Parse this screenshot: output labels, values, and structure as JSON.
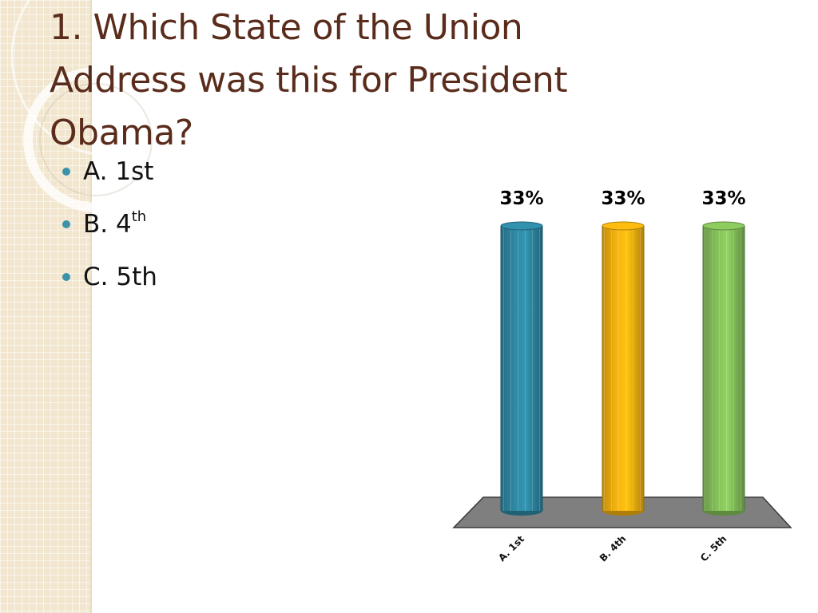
{
  "slide": {
    "title": "1.  Which State of the Union Address was this for President Obama?",
    "answers": [
      {
        "label": "A.  1st",
        "sup": ""
      },
      {
        "label": "B.  4",
        "sup": "th"
      },
      {
        "label": "C.  5th",
        "sup": ""
      }
    ]
  },
  "chart_data": {
    "type": "bar",
    "categories": [
      "A.  1st",
      "B.  4th",
      "C.  5th"
    ],
    "values": [
      33,
      33,
      33
    ],
    "value_labels": [
      "33%",
      "33%",
      "33%"
    ],
    "colors": [
      "#2f8aa6",
      "#f7b50e",
      "#86c35a"
    ],
    "ylim": [
      0,
      33
    ],
    "grid": false,
    "legend": "none"
  }
}
